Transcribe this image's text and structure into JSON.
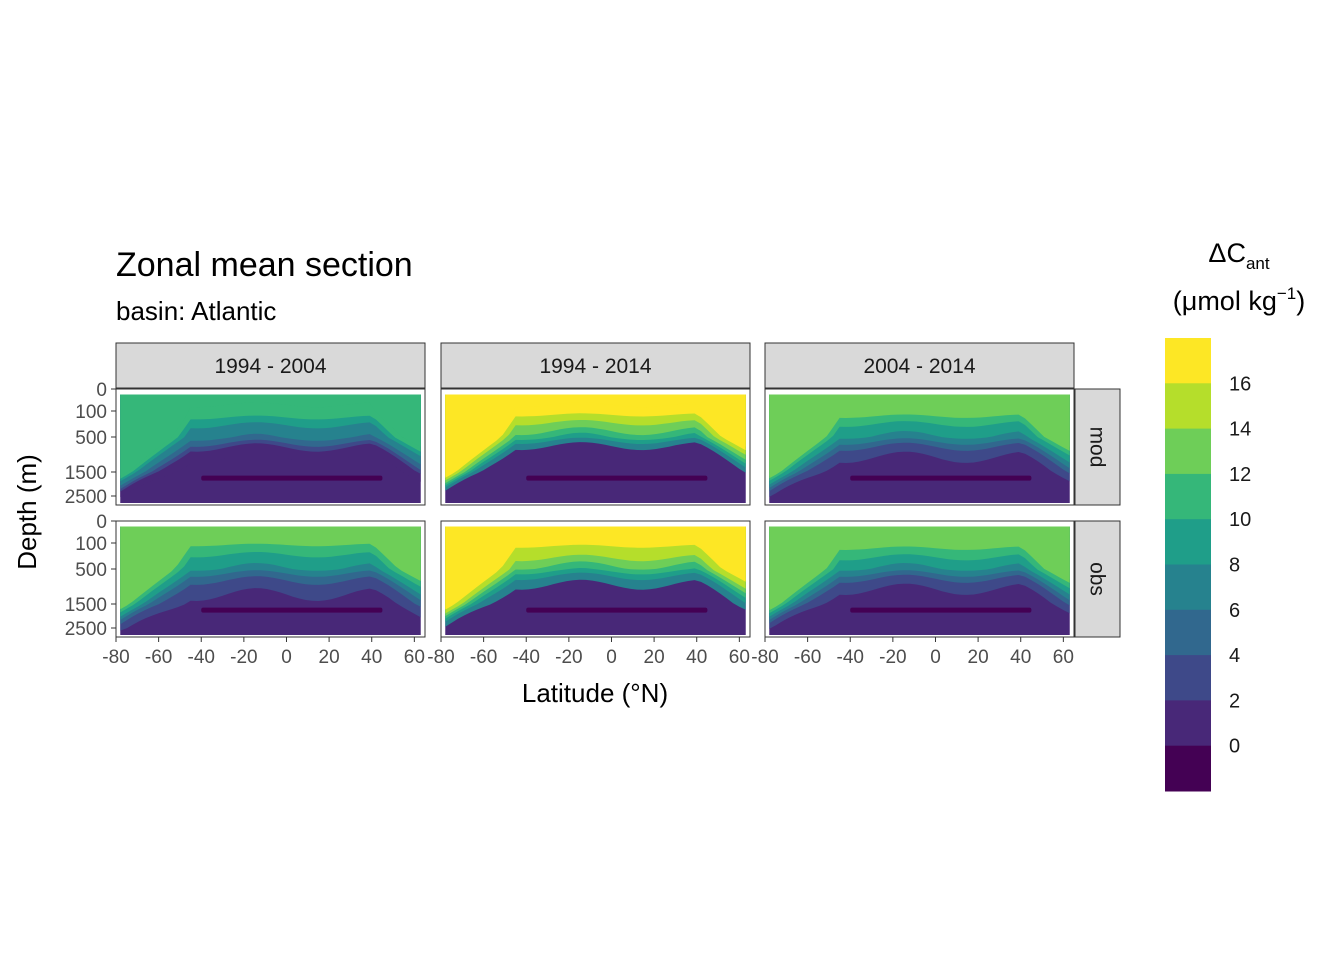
{
  "chart_data": {
    "type": "heatmap",
    "title": "Zonal mean section",
    "subtitle": "basin: Atlantic",
    "xlabel": "Latitude (°N)",
    "ylabel": "Depth (m)",
    "xlim": [
      -80,
      65
    ],
    "x_ticks": [
      -80,
      -60,
      -40,
      -20,
      0,
      20,
      40,
      60
    ],
    "x_tick_labels": [
      "-80",
      "-60",
      "-40",
      "-20",
      "0",
      "20",
      "40",
      "60"
    ],
    "y_ticks": [
      0,
      100,
      500,
      1500,
      2500
    ],
    "y_tick_labels": [
      "0",
      "100",
      "500",
      "1500",
      "2500"
    ],
    "column_facets": [
      "1994 - 2004",
      "1994 - 2014",
      "2004 - 2014"
    ],
    "row_facets": [
      "mod",
      "obs"
    ],
    "legend": {
      "title_main": "ΔC",
      "title_sub": "ant",
      "unit_prefix": "(μmol kg",
      "unit_sup": "−1",
      "unit_suffix": ")",
      "labels": [
        "16",
        "14",
        "12",
        "10",
        "8",
        "6",
        "4",
        "2",
        "0"
      ],
      "colors_top_to_bottom": [
        "#fde725",
        "#b5de2b",
        "#6ece58",
        "#35b779",
        "#1f9e89",
        "#26828e",
        "#31688e",
        "#3e4989",
        "#482878",
        "#440154"
      ]
    },
    "palette_levels": [
      "#440154",
      "#482878",
      "#3e4989",
      "#31688e",
      "#26828e",
      "#1f9e89",
      "#35b779",
      "#6ece58",
      "#b5de2b",
      "#fde725"
    ],
    "panels": [
      {
        "period": "1994 - 2004",
        "source": "mod",
        "surface_level": 7,
        "interface_depths_m": [
          0,
          120,
          330,
          480,
          600,
          900
        ],
        "tail_cv": 200
      },
      {
        "period": "1994 - 2014",
        "source": "mod",
        "surface_level": 10,
        "interface_depths_m": [
          0,
          120,
          250,
          350,
          450,
          600
        ],
        "tail_cv": 160
      },
      {
        "period": "2004 - 2014",
        "source": "mod",
        "surface_level": 8,
        "interface_depths_m": [
          0,
          120,
          300,
          450,
          600,
          900
        ],
        "tail_cv": 180
      },
      {
        "period": "1994 - 2004",
        "source": "obs",
        "surface_level": 8,
        "interface_depths_m": [
          0,
          150,
          350,
          500,
          700,
          1100
        ],
        "tail_cv": 130
      },
      {
        "period": "1994 - 2014",
        "source": "obs",
        "surface_level": 10,
        "interface_depths_m": [
          0,
          180,
          300,
          420,
          560,
          800
        ],
        "tail_cv": 150
      },
      {
        "period": "2004 - 2014",
        "source": "obs",
        "surface_level": 8,
        "interface_depths_m": [
          0,
          140,
          300,
          450,
          600,
          900
        ],
        "tail_cv": 180
      }
    ]
  }
}
